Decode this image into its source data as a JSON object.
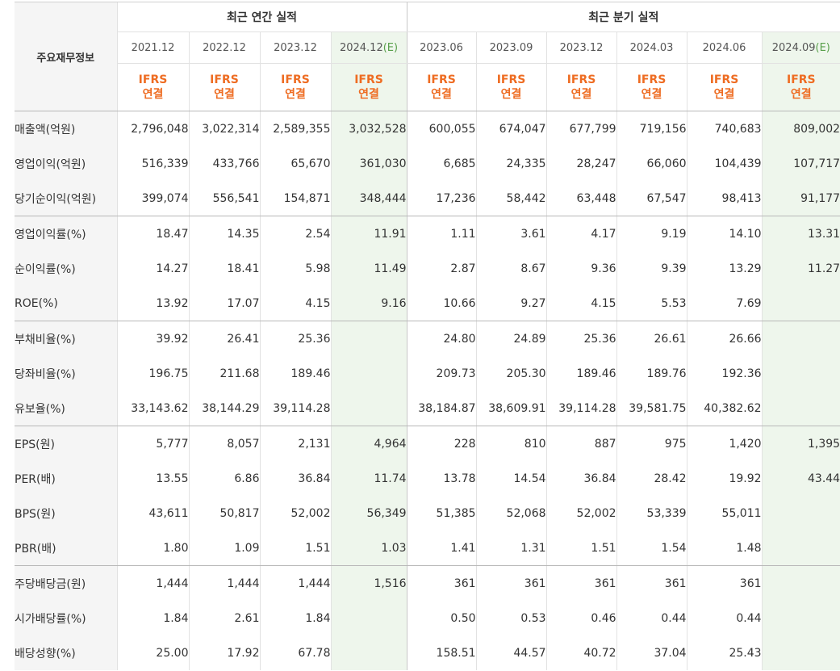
{
  "header": {
    "label_title": "주요재무정보",
    "annual_title": "최근 연간 실적",
    "quarter_title": "최근 분기 실적"
  },
  "periods": [
    {
      "label": "2021.12",
      "est": ""
    },
    {
      "label": "2022.12",
      "est": ""
    },
    {
      "label": "2023.12",
      "est": ""
    },
    {
      "label": "2024.12",
      "est": "(E)"
    },
    {
      "label": "2023.06",
      "est": ""
    },
    {
      "label": "2023.09",
      "est": ""
    },
    {
      "label": "2023.12",
      "est": ""
    },
    {
      "label": "2024.03",
      "est": ""
    },
    {
      "label": "2024.06",
      "est": ""
    },
    {
      "label": "2024.09",
      "est": "(E)"
    }
  ],
  "basis": {
    "line1": "IFRS",
    "line2": "연결"
  },
  "rows": [
    {
      "label": "매출액(억원)",
      "values": [
        "2,796,048",
        "3,022,314",
        "2,589,355",
        "3,032,528",
        "600,055",
        "674,047",
        "677,799",
        "719,156",
        "740,683",
        "809,002"
      ]
    },
    {
      "label": "영업이익(억원)",
      "values": [
        "516,339",
        "433,766",
        "65,670",
        "361,030",
        "6,685",
        "24,335",
        "28,247",
        "66,060",
        "104,439",
        "107,717"
      ]
    },
    {
      "label": "당기순이익(억원)",
      "values": [
        "399,074",
        "556,541",
        "154,871",
        "348,444",
        "17,236",
        "58,442",
        "63,448",
        "67,547",
        "98,413",
        "91,177"
      ]
    },
    {
      "label": "영업이익률(%)",
      "values": [
        "18.47",
        "14.35",
        "2.54",
        "11.91",
        "1.11",
        "3.61",
        "4.17",
        "9.19",
        "14.10",
        "13.31"
      ]
    },
    {
      "label": "순이익률(%)",
      "values": [
        "14.27",
        "18.41",
        "5.98",
        "11.49",
        "2.87",
        "8.67",
        "9.36",
        "9.39",
        "13.29",
        "11.27"
      ]
    },
    {
      "label": "ROE(%)",
      "values": [
        "13.92",
        "17.07",
        "4.15",
        "9.16",
        "10.66",
        "9.27",
        "4.15",
        "5.53",
        "7.69",
        ""
      ]
    },
    {
      "label": "부채비율(%)",
      "values": [
        "39.92",
        "26.41",
        "25.36",
        "",
        "24.80",
        "24.89",
        "25.36",
        "26.61",
        "26.66",
        ""
      ]
    },
    {
      "label": "당좌비율(%)",
      "values": [
        "196.75",
        "211.68",
        "189.46",
        "",
        "209.73",
        "205.30",
        "189.46",
        "189.76",
        "192.36",
        ""
      ]
    },
    {
      "label": "유보율(%)",
      "values": [
        "33,143.62",
        "38,144.29",
        "39,114.28",
        "",
        "38,184.87",
        "38,609.91",
        "39,114.28",
        "39,581.75",
        "40,382.62",
        ""
      ]
    },
    {
      "label": "EPS(원)",
      "values": [
        "5,777",
        "8,057",
        "2,131",
        "4,964",
        "228",
        "810",
        "887",
        "975",
        "1,420",
        "1,395"
      ]
    },
    {
      "label": "PER(배)",
      "values": [
        "13.55",
        "6.86",
        "36.84",
        "11.74",
        "13.78",
        "14.54",
        "36.84",
        "28.42",
        "19.92",
        "43.44"
      ]
    },
    {
      "label": "BPS(원)",
      "values": [
        "43,611",
        "50,817",
        "52,002",
        "56,349",
        "51,385",
        "52,068",
        "52,002",
        "53,339",
        "55,011",
        ""
      ]
    },
    {
      "label": "PBR(배)",
      "values": [
        "1.80",
        "1.09",
        "1.51",
        "1.03",
        "1.41",
        "1.31",
        "1.51",
        "1.54",
        "1.48",
        ""
      ]
    },
    {
      "label": "주당배당금(원)",
      "values": [
        "1,444",
        "1,444",
        "1,444",
        "1,516",
        "361",
        "361",
        "361",
        "361",
        "361",
        ""
      ]
    },
    {
      "label": "시가배당률(%)",
      "values": [
        "1.84",
        "2.61",
        "1.84",
        "",
        "0.50",
        "0.53",
        "0.46",
        "0.44",
        "0.44",
        ""
      ]
    },
    {
      "label": "배당성향(%)",
      "values": [
        "25.00",
        "17.92",
        "67.78",
        "",
        "158.51",
        "44.57",
        "40.72",
        "37.04",
        "25.43",
        ""
      ]
    }
  ]
}
